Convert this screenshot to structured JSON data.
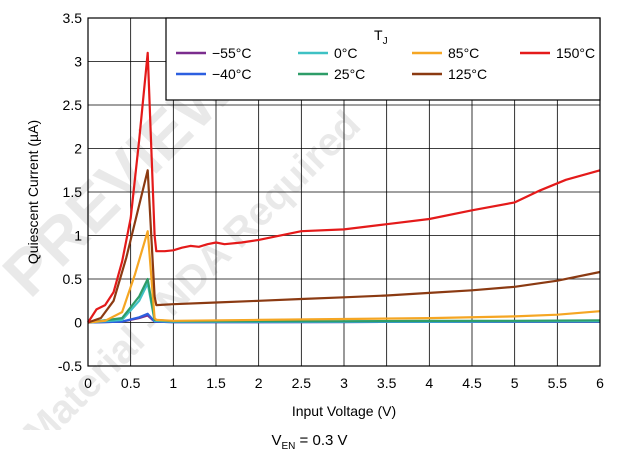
{
  "chart_data": {
    "type": "line",
    "xlabel": "Input Voltage (V)",
    "ylabel": "Quiescent Current (µA)",
    "xlim": [
      0,
      6
    ],
    "ylim": [
      -0.5,
      3.5
    ],
    "xticks": [
      0,
      0.5,
      1,
      1.5,
      2,
      2.5,
      3,
      3.5,
      4,
      4.5,
      5,
      5.5,
      6
    ],
    "yticks": [
      -0.5,
      0,
      0.5,
      1,
      1.5,
      2,
      2.5,
      3,
      3.5
    ],
    "xtick_labels": [
      "0",
      "0.5",
      "1",
      "1.5",
      "2",
      "2.5",
      "3",
      "3.5",
      "4",
      "4.5",
      "5",
      "5.5",
      "6"
    ],
    "ytick_labels": [
      "-0.5",
      "0",
      "0.5",
      "1",
      "1.5",
      "2",
      "2.5",
      "3",
      "3.5"
    ],
    "grid": true,
    "legend": {
      "title_main": "T",
      "title_sub": "J",
      "placement": "top-right"
    },
    "series": [
      {
        "name": "−55°C",
        "color": "#7B2D8E",
        "x": [
          0,
          0.4,
          0.6,
          0.7,
          0.78,
          1,
          2,
          3,
          4,
          5,
          6
        ],
        "y": [
          0,
          0.01,
          0.05,
          0.08,
          0.01,
          0.005,
          0.005,
          0.006,
          0.007,
          0.008,
          0.01
        ]
      },
      {
        "name": "−40°C",
        "color": "#2C5FE0",
        "x": [
          0,
          0.4,
          0.6,
          0.7,
          0.78,
          1,
          2,
          3,
          4,
          5,
          6
        ],
        "y": [
          0,
          0.01,
          0.06,
          0.1,
          0.01,
          0.005,
          0.005,
          0.006,
          0.007,
          0.008,
          0.01
        ]
      },
      {
        "name": "0°C",
        "color": "#3EC1C4",
        "x": [
          0,
          0.4,
          0.6,
          0.7,
          0.78,
          1,
          2,
          3,
          4,
          5,
          6
        ],
        "y": [
          0,
          0.03,
          0.25,
          0.45,
          0.02,
          0.01,
          0.01,
          0.01,
          0.012,
          0.014,
          0.016
        ]
      },
      {
        "name": "25°C",
        "color": "#2E9D68",
        "x": [
          0,
          0.4,
          0.6,
          0.7,
          0.78,
          1,
          2,
          3,
          4,
          5,
          6
        ],
        "y": [
          0,
          0.05,
          0.3,
          0.5,
          0.03,
          0.015,
          0.015,
          0.015,
          0.018,
          0.02,
          0.025
        ]
      },
      {
        "name": "85°C",
        "color": "#F5A623",
        "x": [
          0,
          0.2,
          0.4,
          0.55,
          0.7,
          0.78,
          0.8,
          1,
          2,
          3,
          4,
          5,
          5.5,
          6
        ],
        "y": [
          0,
          0.02,
          0.12,
          0.55,
          1.05,
          0.05,
          0.03,
          0.02,
          0.03,
          0.04,
          0.05,
          0.07,
          0.09,
          0.13
        ]
      },
      {
        "name": "125°C",
        "color": "#8B3A12",
        "x": [
          0,
          0.15,
          0.3,
          0.45,
          0.6,
          0.7,
          0.78,
          0.8,
          1,
          1.5,
          2,
          2.5,
          3,
          3.5,
          4,
          4.5,
          5,
          5.5,
          6
        ],
        "y": [
          0,
          0.05,
          0.25,
          0.75,
          1.35,
          1.75,
          0.3,
          0.2,
          0.21,
          0.23,
          0.25,
          0.27,
          0.29,
          0.31,
          0.34,
          0.37,
          0.41,
          0.48,
          0.58
        ]
      },
      {
        "name": "150°C",
        "color": "#E41A1A",
        "x": [
          0,
          0.1,
          0.2,
          0.3,
          0.4,
          0.5,
          0.6,
          0.7,
          0.78,
          0.8,
          0.9,
          1,
          1.1,
          1.2,
          1.3,
          1.4,
          1.5,
          1.6,
          1.8,
          2,
          2.5,
          3,
          3.5,
          4,
          4.5,
          5,
          5.3,
          5.6,
          6
        ],
        "y": [
          0,
          0.15,
          0.2,
          0.35,
          0.7,
          1.2,
          2.1,
          3.1,
          1.0,
          0.82,
          0.82,
          0.83,
          0.86,
          0.88,
          0.87,
          0.9,
          0.92,
          0.9,
          0.92,
          0.95,
          1.05,
          1.07,
          1.13,
          1.19,
          1.29,
          1.38,
          1.52,
          1.64,
          1.75
        ]
      }
    ]
  },
  "caption": {
    "main": "V",
    "sub": "EN",
    "rest": " = 0.3 V"
  },
  "watermark": {
    "line1": "PREVIEW",
    "line2": "Material - NDA Required"
  }
}
